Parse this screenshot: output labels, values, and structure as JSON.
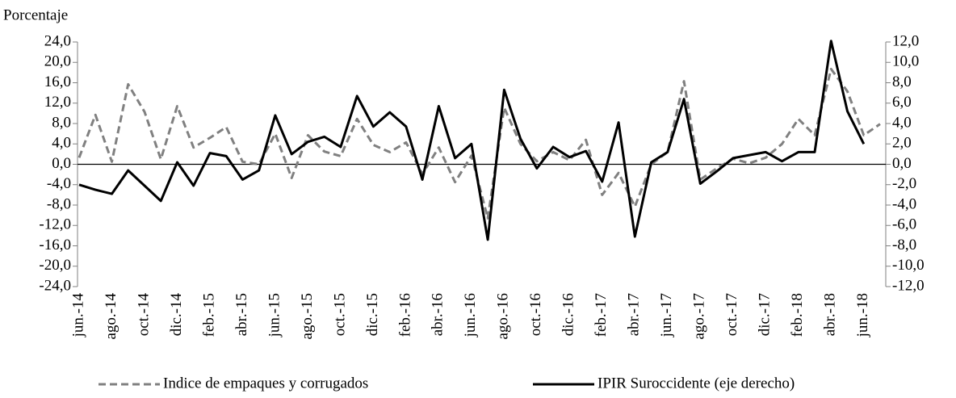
{
  "chart_data": {
    "type": "line",
    "y_label": "Porcentaje",
    "categories": [
      "jun.-14",
      null,
      "ago.-14",
      null,
      "oct.-14",
      null,
      "dic.-14",
      null,
      "feb.-15",
      null,
      "abr.-15",
      null,
      "jun.-15",
      null,
      "ago.-15",
      null,
      "oct.-15",
      null,
      "dic.-15",
      null,
      "feb.-16",
      null,
      "abr.-16",
      null,
      "jun.-16",
      null,
      "ago.-16",
      null,
      "oct.-16",
      null,
      "dic.-16",
      null,
      "feb.-17",
      null,
      "abr.-17",
      null,
      "jun.-17",
      null,
      "ago.-17",
      null,
      "oct.-17",
      null,
      "dic.-17",
      null,
      "feb.-18",
      null,
      "abr.-18",
      null,
      "jun.-18",
      null
    ],
    "series": [
      {
        "name": "Indice de empaques y corrugados",
        "color": "#808080",
        "dash": true,
        "values": [
          1.3,
          9.7,
          0.5,
          15.7,
          10.3,
          1.0,
          11.4,
          3.3,
          5.2,
          7.3,
          0.5,
          0.0,
          6.0,
          -2.7,
          5.7,
          2.5,
          1.6,
          8.9,
          3.8,
          2.4,
          4.3,
          -1.9,
          3.3,
          -3.5,
          1.7,
          -10.6,
          11.1,
          4.0,
          0.6,
          2.4,
          0.8,
          4.8,
          -6.0,
          -1.7,
          -8.3,
          0.0,
          2.4,
          16.3,
          -3.0,
          -0.8,
          1.1,
          0.2,
          1.3,
          4.0,
          8.9,
          5.7,
          18.7,
          14.3,
          5.7,
          7.9
        ]
      },
      {
        "name": "IPIR Suroccidente (eje derecho)",
        "color": "#000000",
        "dash": false,
        "axis": "y2",
        "values": [
          -2.0,
          -2.5,
          -2.9,
          -0.6,
          -2.1,
          -3.6,
          0.2,
          -2.1,
          1.1,
          0.8,
          -1.5,
          -0.6,
          4.8,
          1.0,
          2.2,
          2.7,
          1.7,
          6.7,
          3.7,
          5.1,
          3.7,
          -1.5,
          5.7,
          0.6,
          2.0,
          -7.4,
          7.3,
          2.5,
          -0.4,
          1.7,
          0.7,
          1.3,
          -1.7,
          4.1,
          -7.1,
          0.2,
          1.2,
          6.4,
          -1.9,
          -0.7,
          0.6,
          0.9,
          1.2,
          0.3,
          1.2,
          1.2,
          12.1,
          5.2,
          2.0,
          null
        ]
      }
    ],
    "ylim": [
      -24,
      24
    ],
    "yticks": [
      {
        "value": -24,
        "label": "-24,0"
      },
      {
        "value": -20,
        "label": "-20,0"
      },
      {
        "value": -16,
        "label": "-16,0"
      },
      {
        "value": -12,
        "label": "-12,0"
      },
      {
        "value": -8,
        "label": "-8,0"
      },
      {
        "value": -4,
        "label": "-4,0"
      },
      {
        "value": 0,
        "label": "0,0"
      },
      {
        "value": 4,
        "label": "4,0"
      },
      {
        "value": 8,
        "label": "8,0"
      },
      {
        "value": 12,
        "label": "12,0"
      },
      {
        "value": 16,
        "label": "16,0"
      },
      {
        "value": 20,
        "label": "20,0"
      },
      {
        "value": 24,
        "label": "24,0"
      }
    ],
    "y2lim": [
      -12,
      12
    ],
    "y2ticks": [
      {
        "value": -12,
        "label": "-12,0"
      },
      {
        "value": -10,
        "label": "-10,0"
      },
      {
        "value": -8,
        "label": "-8,0"
      },
      {
        "value": -6,
        "label": "-6,0"
      },
      {
        "value": -4,
        "label": "-4,0"
      },
      {
        "value": -2,
        "label": "-2,0"
      },
      {
        "value": 0,
        "label": "0,0"
      },
      {
        "value": 2,
        "label": "2,0"
      },
      {
        "value": 4,
        "label": "4,0"
      },
      {
        "value": 6,
        "label": "6,0"
      },
      {
        "value": 8,
        "label": "8,0"
      },
      {
        "value": 10,
        "label": "10,0"
      },
      {
        "value": 12,
        "label": "12,0"
      }
    ],
    "legend": "bottom"
  }
}
